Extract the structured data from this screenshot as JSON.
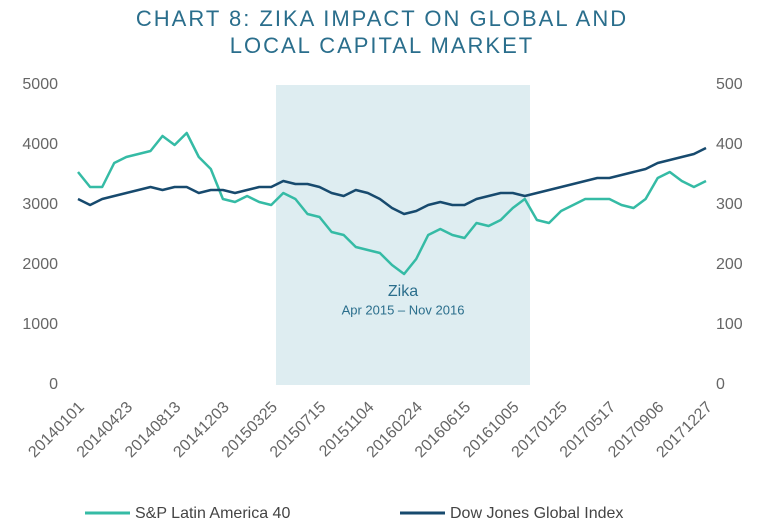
{
  "chart_data": {
    "type": "line",
    "title": [
      "CHART 8: ZIKA IMPACT ON GLOBAL AND",
      "LOCAL CAPITAL MARKET"
    ],
    "annotation": {
      "label": "Zika",
      "sublabel": "Apr 2015 – Nov 2016"
    },
    "categories": [
      "20140101",
      null,
      null,
      null,
      "20140423",
      null,
      null,
      null,
      "20140813",
      null,
      null,
      null,
      "20141203",
      null,
      null,
      null,
      "20150325",
      null,
      null,
      null,
      "20150715",
      null,
      null,
      null,
      "20151104",
      null,
      null,
      null,
      "20160224",
      null,
      null,
      null,
      "20160615",
      null,
      null,
      null,
      "20161005",
      null,
      null,
      null,
      "20170125",
      null,
      null,
      null,
      "20170517",
      null,
      null,
      null,
      "20170906",
      null,
      null,
      null,
      "20171227"
    ],
    "series": [
      {
        "name": "S&P Latin America 40",
        "color": "#35bba5",
        "axis": "y",
        "values": [
          3550,
          3300,
          3300,
          3700,
          3800,
          3850,
          3900,
          4150,
          4000,
          4200,
          3800,
          3600,
          3100,
          3050,
          3150,
          3050,
          3000,
          3200,
          3100,
          2850,
          2800,
          2550,
          2500,
          2300,
          2250,
          2200,
          2000,
          1850,
          2100,
          2500,
          2600,
          2500,
          2450,
          2700,
          2650,
          2750,
          2950,
          3100,
          2750,
          2700,
          2900,
          3000,
          3100,
          3100,
          3100,
          3000,
          2950,
          3100,
          3450,
          3550,
          3400,
          3300,
          3400
        ]
      },
      {
        "name": "Dow Jones Global Index",
        "color": "#174a6e",
        "axis": "y2",
        "values": [
          310,
          300,
          310,
          315,
          320,
          325,
          330,
          325,
          330,
          330,
          320,
          325,
          325,
          320,
          325,
          330,
          330,
          340,
          335,
          335,
          330,
          320,
          315,
          325,
          320,
          310,
          295,
          285,
          290,
          300,
          305,
          300,
          300,
          310,
          315,
          320,
          320,
          315,
          320,
          325,
          330,
          335,
          340,
          345,
          345,
          350,
          355,
          360,
          370,
          375,
          380,
          385,
          395
        ]
      }
    ],
    "ylim": [
      0,
      5000
    ],
    "yticks": [
      0,
      1000,
      2000,
      3000,
      4000,
      5000
    ],
    "y2lim": [
      0,
      500
    ],
    "y2ticks": [
      0,
      100,
      200,
      300,
      400,
      500
    ]
  }
}
